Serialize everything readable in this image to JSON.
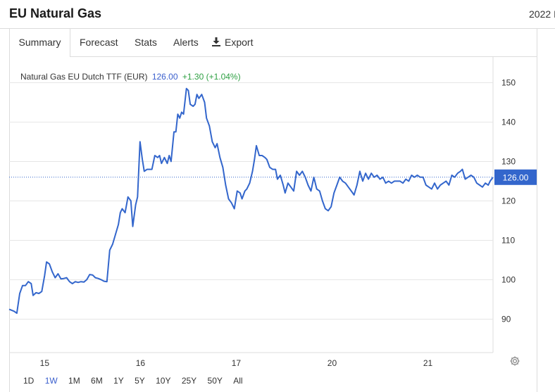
{
  "header": {
    "title": "EU Natural Gas",
    "right_text": "2022 I"
  },
  "tabs": [
    {
      "label": "Summary",
      "active": true
    },
    {
      "label": "Forecast",
      "active": false
    },
    {
      "label": "Stats",
      "active": false
    },
    {
      "label": "Alerts",
      "active": false
    },
    {
      "label": "Export",
      "active": false,
      "icon": "download-icon"
    }
  ],
  "quote": {
    "name": "Natural Gas EU Dutch TTF (EUR)",
    "price": "126.00",
    "change": "+1.30 (+1.04%)"
  },
  "ranges": [
    {
      "label": "1D",
      "active": false
    },
    {
      "label": "1W",
      "active": true
    },
    {
      "label": "1M",
      "active": false
    },
    {
      "label": "6M",
      "active": false
    },
    {
      "label": "1Y",
      "active": false
    },
    {
      "label": "5Y",
      "active": false
    },
    {
      "label": "10Y",
      "active": false
    },
    {
      "label": "25Y",
      "active": false
    },
    {
      "label": "50Y",
      "active": false
    },
    {
      "label": "All",
      "active": false
    }
  ],
  "colors": {
    "line": "#3366cc",
    "price_badge": "#3366cc",
    "change_positive": "#2ea043",
    "grid": "#e6e6e6"
  },
  "chart_data": {
    "type": "line",
    "title": "",
    "xlabel": "",
    "ylabel": "",
    "x_ticks": [
      "15",
      "16",
      "17",
      "20",
      "21"
    ],
    "x_tick_positions": [
      1,
      6,
      11,
      16,
      21
    ],
    "xlim": [
      -0.85,
      24.4
    ],
    "y_ticks": [
      90,
      100,
      110,
      120,
      130,
      140,
      150
    ],
    "ylim": [
      81.5,
      156.5
    ],
    "last_price": 126.0,
    "last_price_label": "126.00",
    "grid": true,
    "series": [
      {
        "values": [
          [
            -0.85,
            92.5
          ],
          [
            -0.6,
            92.0
          ],
          [
            -0.45,
            91.5
          ],
          [
            -0.3,
            96.5
          ],
          [
            -0.15,
            98.5
          ],
          [
            0.0,
            98.5
          ],
          [
            0.15,
            99.5
          ],
          [
            0.3,
            99.0
          ],
          [
            0.4,
            96.0
          ],
          [
            0.55,
            96.7
          ],
          [
            0.7,
            96.5
          ],
          [
            0.85,
            97.0
          ],
          [
            1.0,
            101.0
          ],
          [
            1.1,
            104.5
          ],
          [
            1.25,
            104.0
          ],
          [
            1.4,
            102.0
          ],
          [
            1.55,
            100.5
          ],
          [
            1.7,
            101.5
          ],
          [
            1.85,
            100.2
          ],
          [
            2.0,
            100.3
          ],
          [
            2.15,
            100.5
          ],
          [
            2.3,
            99.5
          ],
          [
            2.45,
            99.0
          ],
          [
            2.6,
            99.5
          ],
          [
            2.75,
            99.3
          ],
          [
            2.9,
            99.5
          ],
          [
            3.05,
            99.4
          ],
          [
            3.2,
            100.0
          ],
          [
            3.35,
            101.3
          ],
          [
            3.5,
            101.2
          ],
          [
            3.65,
            100.5
          ],
          [
            3.8,
            100.3
          ],
          [
            3.95,
            100.0
          ],
          [
            4.1,
            99.6
          ],
          [
            4.25,
            99.5
          ],
          [
            4.4,
            107.5
          ],
          [
            4.55,
            109.0
          ],
          [
            4.7,
            111.5
          ],
          [
            4.85,
            114.0
          ],
          [
            4.95,
            117.0
          ],
          [
            5.05,
            118.0
          ],
          [
            5.2,
            117.0
          ],
          [
            5.35,
            121.0
          ],
          [
            5.5,
            120.0
          ],
          [
            5.6,
            113.5
          ],
          [
            5.75,
            119.0
          ],
          [
            5.85,
            121.0
          ],
          [
            5.98,
            135.0
          ],
          [
            6.1,
            130.5
          ],
          [
            6.2,
            127.5
          ],
          [
            6.35,
            128.0
          ],
          [
            6.5,
            128.0
          ],
          [
            6.6,
            128.0
          ],
          [
            6.75,
            131.5
          ],
          [
            6.9,
            131.0
          ],
          [
            7.0,
            131.5
          ],
          [
            7.1,
            129.5
          ],
          [
            7.25,
            131.0
          ],
          [
            7.4,
            129.5
          ],
          [
            7.5,
            131.5
          ],
          [
            7.6,
            130.0
          ],
          [
            7.75,
            137.5
          ],
          [
            7.85,
            137.5
          ],
          [
            7.95,
            142.0
          ],
          [
            8.05,
            141.0
          ],
          [
            8.15,
            142.5
          ],
          [
            8.25,
            142.0
          ],
          [
            8.4,
            148.5
          ],
          [
            8.5,
            148.0
          ],
          [
            8.6,
            144.5
          ],
          [
            8.75,
            144.0
          ],
          [
            8.85,
            144.5
          ],
          [
            8.95,
            147.0
          ],
          [
            9.05,
            146.0
          ],
          [
            9.2,
            147.0
          ],
          [
            9.35,
            145.0
          ],
          [
            9.45,
            141.0
          ],
          [
            9.6,
            139.0
          ],
          [
            9.75,
            135.0
          ],
          [
            9.9,
            133.5
          ],
          [
            10.0,
            134.5
          ],
          [
            10.15,
            131.0
          ],
          [
            10.3,
            128.5
          ],
          [
            10.45,
            124.0
          ],
          [
            10.6,
            120.5
          ],
          [
            10.75,
            119.5
          ],
          [
            10.9,
            118.0
          ],
          [
            11.05,
            122.5
          ],
          [
            11.2,
            122.0
          ],
          [
            11.3,
            120.5
          ],
          [
            11.45,
            122.5
          ],
          [
            11.55,
            123.0
          ],
          [
            11.7,
            124.5
          ],
          [
            11.85,
            127.5
          ],
          [
            11.95,
            130.5
          ],
          [
            12.05,
            134.0
          ],
          [
            12.2,
            131.5
          ],
          [
            12.35,
            131.5
          ],
          [
            12.5,
            131.0
          ],
          [
            12.6,
            130.5
          ],
          [
            12.75,
            128.5
          ],
          [
            12.9,
            128.0
          ],
          [
            13.05,
            128.0
          ],
          [
            13.15,
            125.5
          ],
          [
            13.3,
            126.5
          ],
          [
            13.45,
            124.0
          ],
          [
            13.55,
            122.0
          ],
          [
            13.7,
            124.5
          ],
          [
            13.85,
            123.5
          ],
          [
            14.0,
            122.5
          ],
          [
            14.15,
            127.5
          ],
          [
            14.3,
            126.5
          ],
          [
            14.45,
            127.5
          ],
          [
            14.6,
            126.0
          ],
          [
            14.75,
            124.0
          ],
          [
            14.9,
            122.5
          ],
          [
            15.05,
            126.0
          ],
          [
            15.2,
            123.0
          ],
          [
            15.35,
            122.5
          ],
          [
            15.5,
            120.0
          ],
          [
            15.65,
            118.0
          ],
          [
            15.8,
            117.5
          ],
          [
            15.95,
            118.5
          ],
          [
            16.1,
            122.0
          ],
          [
            16.25,
            124.0
          ],
          [
            16.4,
            126.0
          ],
          [
            16.55,
            125.0
          ],
          [
            16.7,
            124.5
          ],
          [
            16.85,
            123.5
          ],
          [
            17.0,
            122.5
          ],
          [
            17.15,
            121.5
          ],
          [
            17.3,
            124.0
          ],
          [
            17.45,
            127.5
          ],
          [
            17.6,
            125.0
          ],
          [
            17.75,
            127.0
          ],
          [
            17.9,
            125.5
          ],
          [
            18.05,
            127.0
          ],
          [
            18.2,
            126.0
          ],
          [
            18.35,
            126.5
          ],
          [
            18.5,
            125.5
          ],
          [
            18.65,
            126.0
          ],
          [
            18.8,
            124.5
          ],
          [
            18.95,
            125.0
          ],
          [
            19.1,
            124.5
          ],
          [
            19.25,
            125.0
          ],
          [
            19.4,
            125.0
          ],
          [
            19.55,
            125.0
          ],
          [
            19.7,
            124.5
          ],
          [
            19.85,
            125.5
          ],
          [
            20.0,
            125.0
          ],
          [
            20.15,
            126.5
          ],
          [
            20.3,
            126.0
          ],
          [
            20.45,
            126.5
          ],
          [
            20.6,
            126.0
          ],
          [
            20.75,
            126.0
          ],
          [
            20.9,
            124.0
          ],
          [
            21.05,
            123.5
          ],
          [
            21.2,
            123.0
          ],
          [
            21.35,
            124.5
          ],
          [
            21.5,
            123.0
          ],
          [
            21.65,
            124.0
          ],
          [
            21.8,
            124.5
          ],
          [
            21.95,
            125.0
          ],
          [
            22.1,
            124.0
          ],
          [
            22.25,
            126.5
          ],
          [
            22.4,
            126.0
          ],
          [
            22.55,
            127.0
          ],
          [
            22.7,
            127.5
          ],
          [
            22.8,
            128.0
          ],
          [
            22.95,
            125.5
          ],
          [
            23.1,
            126.0
          ],
          [
            23.25,
            126.5
          ],
          [
            23.4,
            126.0
          ],
          [
            23.55,
            124.5
          ],
          [
            23.7,
            124.0
          ],
          [
            23.85,
            123.5
          ],
          [
            24.0,
            124.5
          ],
          [
            24.15,
            124.0
          ],
          [
            24.25,
            125.0
          ],
          [
            24.4,
            126.0
          ]
        ]
      }
    ]
  }
}
